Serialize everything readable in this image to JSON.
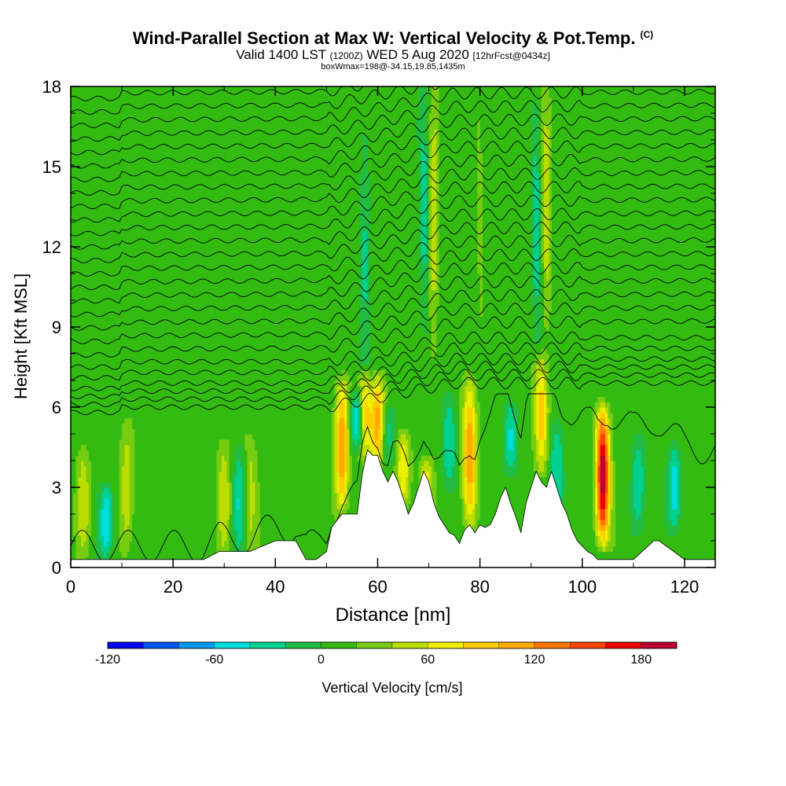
{
  "header": {
    "title": "Wind-Parallel Section at Max W: Vertical Velocity & Pot.Temp.",
    "title_mark": "(C)",
    "valid_label": "Valid 1400 LST",
    "valid_z": "(1200Z)",
    "valid_date": "WED 5 Aug 2020",
    "forecast": "[12hrFcst@0434z]",
    "box_info": "boxWmax=198@-34.15,19.85,1435m"
  },
  "chart_data": {
    "type": "heatmap",
    "title": "Wind-Parallel Section at Max W: Vertical Velocity & Pot.Temp.",
    "xlabel": "Distance [nm]",
    "ylabel": "Height [Kft MSL]",
    "xlim": [
      0,
      126
    ],
    "ylim": [
      0,
      18
    ],
    "xticks": [
      0,
      20,
      40,
      60,
      80,
      100,
      120
    ],
    "yticks": [
      0,
      3,
      6,
      9,
      12,
      15,
      18
    ],
    "colorbar": {
      "label": "Vertical Velocity [cm/s]",
      "min": -120,
      "max": 200,
      "step": 20,
      "tick_values": [
        -120,
        -60,
        0,
        60,
        120,
        180
      ],
      "tick_labels": [
        "-120",
        "-60",
        "0",
        "60",
        "120",
        "180"
      ],
      "colors": [
        "#0000ee",
        "#0055ee",
        "#0099ee",
        "#00dddd",
        "#00d090",
        "#22bb44",
        "#33bb11",
        "#77cc11",
        "#bbdd00",
        "#eeee00",
        "#ffcc00",
        "#ffaa00",
        "#ff7700",
        "#ff4400",
        "#ee0000",
        "#bb0033"
      ]
    },
    "background_w": 10,
    "w_features": [
      {
        "x": 53,
        "bottom": 2.0,
        "top": 7.0,
        "peak": 120
      },
      {
        "x": 57.5,
        "bottom": 4.2,
        "top": 7.2,
        "peak": 100
      },
      {
        "x": 60,
        "bottom": 3.8,
        "top": 7.0,
        "peak": 110
      },
      {
        "x": 78,
        "bottom": 1.5,
        "top": 7.2,
        "peak": 115
      },
      {
        "x": 92,
        "bottom": 3.6,
        "top": 8.0,
        "peak": 95
      },
      {
        "x": 104,
        "bottom": 0.8,
        "top": 6.0,
        "peak": 198
      },
      {
        "x": 65,
        "bottom": 2.5,
        "top": 5.0,
        "peak": 80
      },
      {
        "x": 69.5,
        "bottom": 2.0,
        "top": 4.0,
        "peak": 75
      },
      {
        "x": 2.5,
        "bottom": 0.5,
        "top": 4.5,
        "peak": 55
      },
      {
        "x": 11,
        "bottom": 0.4,
        "top": 5.5,
        "peak": 55
      },
      {
        "x": 30,
        "bottom": 0.5,
        "top": 4.8,
        "peak": 55
      },
      {
        "x": 35,
        "bottom": 0.5,
        "top": 5.0,
        "peak": 50
      },
      {
        "x": 7,
        "bottom": 0.5,
        "top": 3.0,
        "peak": -60
      },
      {
        "x": 33,
        "bottom": 0.6,
        "top": 4.5,
        "peak": -40
      },
      {
        "x": 56,
        "bottom": 4.5,
        "top": 6.5,
        "peak": -70
      },
      {
        "x": 62,
        "bottom": 4.0,
        "top": 6.0,
        "peak": -30
      },
      {
        "x": 74,
        "bottom": 3.0,
        "top": 6.5,
        "peak": -40
      },
      {
        "x": 86,
        "bottom": 3.5,
        "top": 6.0,
        "peak": -45
      },
      {
        "x": 95,
        "bottom": 2.0,
        "top": 5.5,
        "peak": -40
      },
      {
        "x": 118,
        "bottom": 1.5,
        "top": 4.5,
        "peak": -50
      },
      {
        "x": 111,
        "bottom": 1.5,
        "top": 5.0,
        "peak": -35
      },
      {
        "x": 71,
        "bottom": 7.0,
        "top": 18.0,
        "peak": 55
      },
      {
        "x": 93,
        "bottom": 8.0,
        "top": 18.0,
        "peak": 55
      },
      {
        "x": 69,
        "bottom": 8.0,
        "top": 18.0,
        "peak": -30
      },
      {
        "x": 91,
        "bottom": 8.0,
        "top": 18.0,
        "peak": -30
      },
      {
        "x": 57.5,
        "bottom": 7.0,
        "top": 18.0,
        "peak": -20
      },
      {
        "x": 80,
        "bottom": 7.0,
        "top": 18.0,
        "peak": 25
      }
    ],
    "terrain": {
      "x": [
        0,
        26,
        29,
        35,
        40,
        44,
        46,
        48,
        50,
        51,
        53,
        56,
        57,
        58,
        59,
        60,
        61,
        62,
        63,
        64,
        65,
        66,
        67,
        68,
        69,
        70,
        71,
        72,
        73,
        74,
        75,
        76,
        77,
        78,
        79,
        80,
        81,
        82,
        83,
        84,
        85,
        86,
        87,
        88,
        89,
        90,
        91,
        92,
        93,
        94,
        95,
        96,
        97,
        98,
        99,
        100,
        101,
        102,
        103,
        104,
        110,
        114,
        115,
        120,
        121,
        126
      ],
      "height": [
        0.3,
        0.3,
        0.6,
        0.6,
        1.0,
        1.0,
        0.3,
        0.3,
        0.6,
        1.5,
        2.0,
        2.0,
        3.5,
        4.4,
        4.2,
        4.2,
        3.6,
        3.2,
        3.6,
        3.2,
        2.6,
        2.0,
        2.4,
        3.0,
        3.6,
        3.2,
        2.4,
        1.9,
        1.6,
        1.3,
        1.2,
        0.9,
        1.4,
        1.6,
        1.3,
        1.6,
        1.5,
        1.6,
        2.0,
        2.6,
        3.0,
        2.4,
        1.9,
        1.3,
        2.4,
        3.0,
        3.6,
        3.2,
        3.0,
        3.6,
        3.0,
        2.4,
        2.0,
        1.4,
        1.0,
        0.8,
        0.6,
        0.5,
        0.3,
        0.3,
        0.3,
        1.0,
        1.0,
        0.3,
        0.3,
        0.3
      ]
    },
    "theta_levels": {
      "count": 27,
      "low_start_height": 0.4,
      "mid_heights": [
        6.0,
        6.3,
        6.6,
        6.9,
        7.3,
        7.7
      ],
      "top_height": 17.8
    }
  }
}
